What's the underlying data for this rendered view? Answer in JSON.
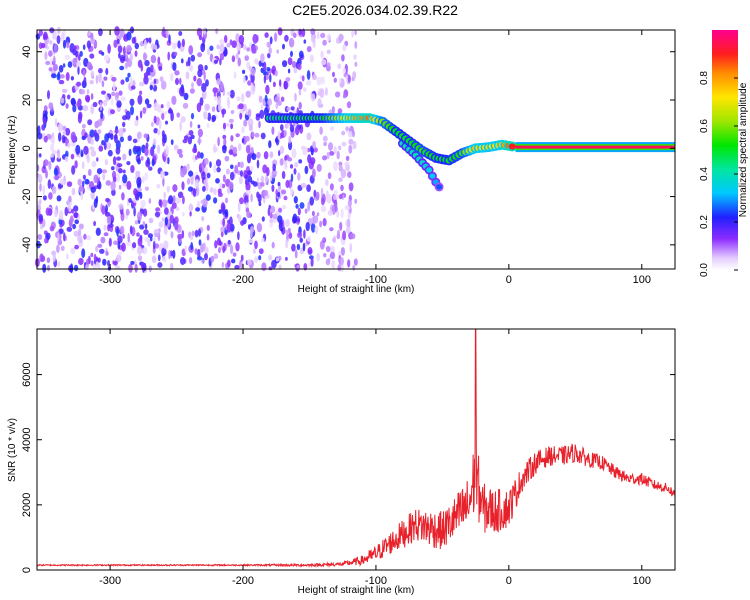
{
  "title": "C2E5.2026.034.02.39.R22",
  "colors": {
    "axis": "#000000",
    "snr_line": "#e8202a"
  },
  "chart_data": [
    {
      "type": "heatmap",
      "xlabel": "Height of straight line (km)",
      "ylabel": "Frequency (Hz)",
      "xlim": [
        -355,
        125
      ],
      "ylim": [
        -50,
        49
      ],
      "xticks": [
        -300,
        -200,
        -100,
        0,
        100
      ],
      "yticks": [
        -40,
        -20,
        0,
        20,
        40
      ],
      "colorbar": {
        "label": "Normalized spectral amplitude",
        "range": [
          0,
          1
        ],
        "ticks": [
          0.0,
          0.2,
          0.4,
          0.6,
          0.8
        ],
        "tick_labels": [
          "0.0",
          "0.2",
          "0.4",
          "0.6",
          "0.8"
        ],
        "colormap": "rainbow"
      },
      "features": {
        "noise_region_x": [
          -355,
          -125
        ],
        "noise_amplitude": [
          0.0,
          0.25
        ],
        "main_trace": [
          {
            "x": -180,
            "y": 12.5,
            "a": 0.45
          },
          {
            "x": -140,
            "y": 12.5,
            "a": 0.5
          },
          {
            "x": -120,
            "y": 12.5,
            "a": 0.75
          },
          {
            "x": -105,
            "y": 12.5,
            "a": 0.85
          },
          {
            "x": -95,
            "y": 11,
            "a": 0.6
          },
          {
            "x": -85,
            "y": 7,
            "a": 0.5
          },
          {
            "x": -75,
            "y": 3,
            "a": 0.5
          },
          {
            "x": -65,
            "y": -1,
            "a": 0.55
          },
          {
            "x": -55,
            "y": -4,
            "a": 0.5
          },
          {
            "x": -45,
            "y": -5,
            "a": 0.5
          },
          {
            "x": -35,
            "y": -2,
            "a": 0.55
          },
          {
            "x": -25,
            "y": 0,
            "a": 0.75
          },
          {
            "x": -15,
            "y": 0.5,
            "a": 0.7
          },
          {
            "x": -5,
            "y": 1.5,
            "a": 0.75
          },
          {
            "x": 5,
            "y": 0.5,
            "a": 0.95
          },
          {
            "x": 125,
            "y": 0.5,
            "a": 0.95
          }
        ],
        "branch_trace": [
          {
            "x": -80,
            "y": 2,
            "a": 0.4
          },
          {
            "x": -70,
            "y": -3,
            "a": 0.4
          },
          {
            "x": -60,
            "y": -9,
            "a": 0.35
          },
          {
            "x": -55,
            "y": -14,
            "a": 0.3
          },
          {
            "x": -50,
            "y": -18,
            "a": 0.2
          }
        ]
      }
    },
    {
      "type": "line",
      "xlabel": "Height of straight line (km)",
      "ylabel": "SNR (10 * v/v)",
      "xlim": [
        -355,
        125
      ],
      "ylim": [
        0,
        7400
      ],
      "xticks": [
        -300,
        -200,
        -100,
        0,
        100
      ],
      "yticks": [
        0,
        2000,
        4000,
        6000
      ],
      "series": [
        {
          "x": [
            -355,
            -300,
            -250,
            -200,
            -150,
            -125,
            -110,
            -100,
            -90,
            -80,
            -70,
            -60,
            -50,
            -40,
            -30,
            -25,
            -20,
            -10,
            0,
            10,
            20,
            30,
            40,
            50,
            60,
            70,
            80,
            90,
            100,
            110,
            120,
            125
          ],
          "values": [
            150,
            150,
            150,
            150,
            150,
            180,
            300,
            500,
            800,
            1100,
            1400,
            1300,
            1200,
            1600,
            2000,
            3000,
            1900,
            1800,
            1900,
            2800,
            3300,
            3500,
            3500,
            3600,
            3400,
            3300,
            3000,
            2800,
            2800,
            2600,
            2500,
            2300
          ],
          "noise": [
            20,
            20,
            20,
            20,
            40,
            60,
            150,
            250,
            350,
            450,
            500,
            600,
            600,
            700,
            900,
            1200,
            800,
            700,
            600,
            400,
            350,
            300,
            300,
            300,
            250,
            220,
            200,
            180,
            180,
            160,
            150,
            150
          ]
        }
      ],
      "annotations": [
        {
          "x": -25,
          "y": 7400,
          "text": ""
        }
      ]
    }
  ]
}
